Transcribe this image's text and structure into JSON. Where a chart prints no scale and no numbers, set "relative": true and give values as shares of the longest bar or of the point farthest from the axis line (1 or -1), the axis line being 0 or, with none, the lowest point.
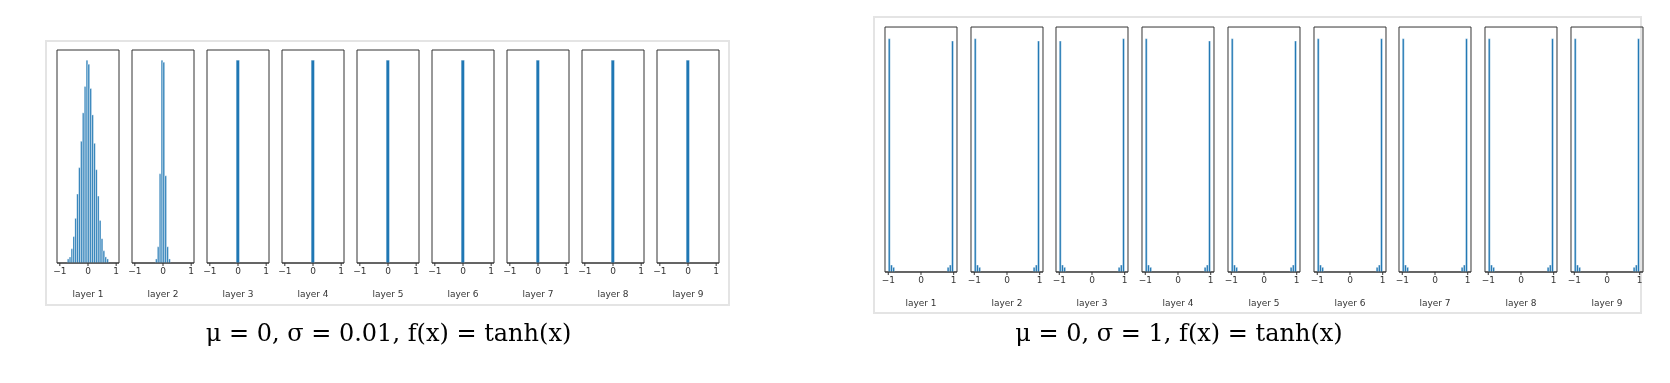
{
  "chart_data": [
    {
      "type": "bar",
      "xlabel": "layer 1",
      "x": [
        -0.967,
        -0.9,
        -0.833,
        -0.767,
        -0.7,
        -0.633,
        -0.567,
        -0.5,
        -0.433,
        -0.367,
        -0.3,
        -0.233,
        -0.167,
        -0.1,
        -0.033,
        0.033,
        0.1,
        0.167,
        0.233,
        0.3,
        0.367,
        0.433,
        0.5,
        0.567,
        0.633,
        0.7,
        0.767,
        0.833,
        0.9,
        0.967
      ],
      "values": [
        0,
        0,
        0,
        0,
        0.02,
        0.03,
        0.07,
        0.13,
        0.22,
        0.34,
        0.47,
        0.6,
        0.74,
        0.87,
        1,
        0.98,
        0.86,
        0.73,
        0.59,
        0.46,
        0.33,
        0.21,
        0.12,
        0.06,
        0.03,
        0.02,
        0,
        0,
        0,
        0
      ],
      "color": "#1f77b4",
      "relative": true,
      "xlim": [
        -1.1,
        1.1
      ],
      "xticks": [
        -1,
        0,
        1
      ]
    },
    {
      "type": "bar",
      "xlabel": "layer 2",
      "x": [
        -0.967,
        -0.9,
        -0.833,
        -0.767,
        -0.7,
        -0.633,
        -0.567,
        -0.5,
        -0.433,
        -0.367,
        -0.3,
        -0.233,
        -0.167,
        -0.1,
        -0.033,
        0.033,
        0.1,
        0.167,
        0.233,
        0.3,
        0.367,
        0.433,
        0.5,
        0.567,
        0.633,
        0.7,
        0.767,
        0.833,
        0.9,
        0.967
      ],
      "values": [
        0,
        0,
        0,
        0,
        0,
        0,
        0,
        0,
        0,
        0,
        0,
        0.02,
        0.08,
        0.44,
        1,
        0.99,
        0.43,
        0.08,
        0.02,
        0,
        0,
        0,
        0,
        0,
        0,
        0,
        0,
        0,
        0,
        0
      ],
      "color": "#1f77b4",
      "relative": true,
      "xlim": [
        -1.1,
        1.1
      ],
      "xticks": [
        -1,
        0,
        1
      ]
    },
    {
      "type": "bar",
      "xlabel": "layer 3",
      "x": [
        -0.933,
        -0.8,
        -0.667,
        -0.533,
        -0.4,
        -0.267,
        -0.133,
        0,
        0.133,
        0.267,
        0.4,
        0.533,
        0.667,
        0.8,
        0.933
      ],
      "values": [
        0,
        0,
        0,
        0,
        0,
        0,
        0,
        1,
        0,
        0,
        0,
        0,
        0,
        0,
        0
      ],
      "color": "#1f77b4",
      "relative": true,
      "xlim": [
        -1.1,
        1.1
      ],
      "xticks": [
        -1,
        0,
        1
      ]
    },
    {
      "type": "bar",
      "xlabel": "layer 4",
      "x": [
        -0.933,
        -0.8,
        -0.667,
        -0.533,
        -0.4,
        -0.267,
        -0.133,
        0,
        0.133,
        0.267,
        0.4,
        0.533,
        0.667,
        0.8,
        0.933
      ],
      "values": [
        0,
        0,
        0,
        0,
        0,
        0,
        0,
        1,
        0,
        0,
        0,
        0,
        0,
        0,
        0
      ],
      "color": "#1f77b4",
      "relative": true,
      "xlim": [
        -1.1,
        1.1
      ],
      "xticks": [
        -1,
        0,
        1
      ]
    },
    {
      "type": "bar",
      "xlabel": "layer 5",
      "x": [
        -0.933,
        -0.8,
        -0.667,
        -0.533,
        -0.4,
        -0.267,
        -0.133,
        0,
        0.133,
        0.267,
        0.4,
        0.533,
        0.667,
        0.8,
        0.933
      ],
      "values": [
        0,
        0,
        0,
        0,
        0,
        0,
        0,
        1,
        0,
        0,
        0,
        0,
        0,
        0,
        0
      ],
      "color": "#1f77b4",
      "relative": true,
      "xlim": [
        -1.1,
        1.1
      ],
      "xticks": [
        -1,
        0,
        1
      ],
      "annotations": [
        "μ = 0, σ = 0.01, f(x) = tanh(x)"
      ]
    },
    {
      "type": "bar",
      "xlabel": "layer 6",
      "x": [
        -0.933,
        -0.8,
        -0.667,
        -0.533,
        -0.4,
        -0.267,
        -0.133,
        0,
        0.133,
        0.267,
        0.4,
        0.533,
        0.667,
        0.8,
        0.933
      ],
      "values": [
        0,
        0,
        0,
        0,
        0,
        0,
        0,
        1,
        0,
        0,
        0,
        0,
        0,
        0,
        0
      ],
      "color": "#1f77b4",
      "relative": true,
      "xlim": [
        -1.1,
        1.1
      ],
      "xticks": [
        -1,
        0,
        1
      ]
    },
    {
      "type": "bar",
      "xlabel": "layer 7",
      "x": [
        -0.933,
        -0.8,
        -0.667,
        -0.533,
        -0.4,
        -0.267,
        -0.133,
        0,
        0.133,
        0.267,
        0.4,
        0.533,
        0.667,
        0.8,
        0.933
      ],
      "values": [
        0,
        0,
        0,
        0,
        0,
        0,
        0,
        1,
        0,
        0,
        0,
        0,
        0,
        0,
        0
      ],
      "color": "#1f77b4",
      "relative": true,
      "xlim": [
        -1.1,
        1.1
      ],
      "xticks": [
        -1,
        0,
        1
      ]
    },
    {
      "type": "bar",
      "xlabel": "layer 8",
      "x": [
        -0.933,
        -0.8,
        -0.667,
        -0.533,
        -0.4,
        -0.267,
        -0.133,
        0,
        0.133,
        0.267,
        0.4,
        0.533,
        0.667,
        0.8,
        0.933
      ],
      "values": [
        0,
        0,
        0,
        0,
        0,
        0,
        0,
        1,
        0,
        0,
        0,
        0,
        0,
        0,
        0
      ],
      "color": "#1f77b4",
      "relative": true,
      "xlim": [
        -1.1,
        1.1
      ],
      "xticks": [
        -1,
        0,
        1
      ]
    },
    {
      "type": "bar",
      "xlabel": "layer 9",
      "x": [
        -0.933,
        -0.8,
        -0.667,
        -0.533,
        -0.4,
        -0.267,
        -0.133,
        0,
        0.133,
        0.267,
        0.4,
        0.533,
        0.667,
        0.8,
        0.933
      ],
      "values": [
        0,
        0,
        0,
        0,
        0,
        0,
        0,
        1,
        0,
        0,
        0,
        0,
        0,
        0,
        0
      ],
      "color": "#1f77b4",
      "relative": true,
      "xlim": [
        -1.1,
        1.1
      ],
      "xticks": [
        -1,
        0,
        1
      ]
    },
    {
      "type": "bar",
      "xlabel": "layer 1",
      "x": [
        -0.967,
        -0.9,
        -0.833,
        -0.767,
        -0.7,
        -0.633,
        -0.567,
        -0.5,
        -0.433,
        -0.367,
        -0.3,
        -0.233,
        -0.167,
        -0.1,
        -0.033,
        0.033,
        0.1,
        0.167,
        0.233,
        0.3,
        0.367,
        0.433,
        0.5,
        0.567,
        0.633,
        0.7,
        0.767,
        0.833,
        0.9,
        0.967
      ],
      "values": [
        1,
        0.03,
        0.02,
        0,
        0,
        0,
        0,
        0,
        0,
        0,
        0,
        0,
        0,
        0,
        0,
        0,
        0,
        0,
        0,
        0,
        0,
        0,
        0,
        0,
        0,
        0,
        0,
        0.02,
        0.03,
        0.99
      ],
      "color": "#1f77b4",
      "relative": true,
      "xlim": [
        -1.1,
        1.1
      ],
      "xticks": [
        -1,
        0,
        1
      ]
    },
    {
      "type": "bar",
      "xlabel": "layer 2",
      "x": [
        -0.967,
        -0.9,
        -0.833,
        -0.767,
        -0.7,
        -0.633,
        -0.567,
        -0.5,
        -0.433,
        -0.367,
        -0.3,
        -0.233,
        -0.167,
        -0.1,
        -0.033,
        0.033,
        0.1,
        0.167,
        0.233,
        0.3,
        0.367,
        0.433,
        0.5,
        0.567,
        0.633,
        0.7,
        0.767,
        0.833,
        0.9,
        0.967
      ],
      "values": [
        1,
        0.03,
        0.02,
        0,
        0,
        0,
        0,
        0,
        0,
        0,
        0,
        0,
        0,
        0,
        0,
        0,
        0,
        0,
        0,
        0,
        0,
        0,
        0,
        0,
        0,
        0,
        0,
        0.02,
        0.03,
        0.99
      ],
      "color": "#1f77b4",
      "relative": true,
      "xlim": [
        -1.1,
        1.1
      ],
      "xticks": [
        -1,
        0,
        1
      ]
    },
    {
      "type": "bar",
      "xlabel": "layer 3",
      "x": [
        -0.967,
        -0.9,
        -0.833,
        -0.767,
        -0.7,
        -0.633,
        -0.567,
        -0.5,
        -0.433,
        -0.367,
        -0.3,
        -0.233,
        -0.167,
        -0.1,
        -0.033,
        0.033,
        0.1,
        0.167,
        0.233,
        0.3,
        0.367,
        0.433,
        0.5,
        0.567,
        0.633,
        0.7,
        0.767,
        0.833,
        0.9,
        0.967
      ],
      "values": [
        0.99,
        0.03,
        0.02,
        0,
        0,
        0,
        0,
        0,
        0,
        0,
        0,
        0,
        0,
        0,
        0,
        0,
        0,
        0,
        0,
        0,
        0,
        0,
        0,
        0,
        0,
        0,
        0,
        0.02,
        0.03,
        1
      ],
      "color": "#1f77b4",
      "relative": true,
      "xlim": [
        -1.1,
        1.1
      ],
      "xticks": [
        -1,
        0,
        1
      ]
    },
    {
      "type": "bar",
      "xlabel": "layer 4",
      "x": [
        -0.967,
        -0.9,
        -0.833,
        -0.767,
        -0.7,
        -0.633,
        -0.567,
        -0.5,
        -0.433,
        -0.367,
        -0.3,
        -0.233,
        -0.167,
        -0.1,
        -0.033,
        0.033,
        0.1,
        0.167,
        0.233,
        0.3,
        0.367,
        0.433,
        0.5,
        0.567,
        0.633,
        0.7,
        0.767,
        0.833,
        0.9,
        0.967
      ],
      "values": [
        1,
        0.03,
        0.02,
        0,
        0,
        0,
        0,
        0,
        0,
        0,
        0,
        0,
        0,
        0,
        0,
        0,
        0,
        0,
        0,
        0,
        0,
        0,
        0,
        0,
        0,
        0,
        0,
        0.02,
        0.03,
        0.99
      ],
      "color": "#1f77b4",
      "relative": true,
      "xlim": [
        -1.1,
        1.1
      ],
      "xticks": [
        -1,
        0,
        1
      ],
      "annotations": [
        "μ = 0, σ = 1, f(x) = tanh(x)"
      ]
    },
    {
      "type": "bar",
      "xlabel": "layer 5",
      "x": [
        -0.967,
        -0.9,
        -0.833,
        -0.767,
        -0.7,
        -0.633,
        -0.567,
        -0.5,
        -0.433,
        -0.367,
        -0.3,
        -0.233,
        -0.167,
        -0.1,
        -0.033,
        0.033,
        0.1,
        0.167,
        0.233,
        0.3,
        0.367,
        0.433,
        0.5,
        0.567,
        0.633,
        0.7,
        0.767,
        0.833,
        0.9,
        0.967
      ],
      "values": [
        1,
        0.03,
        0.02,
        0,
        0,
        0,
        0,
        0,
        0,
        0,
        0,
        0,
        0,
        0,
        0,
        0,
        0,
        0,
        0,
        0,
        0,
        0,
        0,
        0,
        0,
        0,
        0,
        0.02,
        0.03,
        0.99
      ],
      "color": "#1f77b4",
      "relative": true,
      "xlim": [
        -1.1,
        1.1
      ],
      "xticks": [
        -1,
        0,
        1
      ]
    },
    {
      "type": "bar",
      "xlabel": "layer 6",
      "x": [
        -0.967,
        -0.9,
        -0.833,
        -0.767,
        -0.7,
        -0.633,
        -0.567,
        -0.5,
        -0.433,
        -0.367,
        -0.3,
        -0.233,
        -0.167,
        -0.1,
        -0.033,
        0.033,
        0.1,
        0.167,
        0.233,
        0.3,
        0.367,
        0.433,
        0.5,
        0.567,
        0.633,
        0.7,
        0.767,
        0.833,
        0.9,
        0.967
      ],
      "values": [
        1,
        0.03,
        0.02,
        0,
        0,
        0,
        0,
        0,
        0,
        0,
        0,
        0,
        0,
        0,
        0,
        0,
        0,
        0,
        0,
        0,
        0,
        0,
        0,
        0,
        0,
        0,
        0,
        0.02,
        0.03,
        1
      ],
      "color": "#1f77b4",
      "relative": true,
      "xlim": [
        -1.1,
        1.1
      ],
      "xticks": [
        -1,
        0,
        1
      ]
    },
    {
      "type": "bar",
      "xlabel": "layer 7",
      "x": [
        -0.967,
        -0.9,
        -0.833,
        -0.767,
        -0.7,
        -0.633,
        -0.567,
        -0.5,
        -0.433,
        -0.367,
        -0.3,
        -0.233,
        -0.167,
        -0.1,
        -0.033,
        0.033,
        0.1,
        0.167,
        0.233,
        0.3,
        0.367,
        0.433,
        0.5,
        0.567,
        0.633,
        0.7,
        0.767,
        0.833,
        0.9,
        0.967
      ],
      "values": [
        1,
        0.03,
        0.02,
        0,
        0,
        0,
        0,
        0,
        0,
        0,
        0,
        0,
        0,
        0,
        0,
        0,
        0,
        0,
        0,
        0,
        0,
        0,
        0,
        0,
        0,
        0,
        0,
        0.02,
        0.03,
        1
      ],
      "color": "#1f77b4",
      "relative": true,
      "xlim": [
        -1.1,
        1.1
      ],
      "xticks": [
        -1,
        0,
        1
      ]
    },
    {
      "type": "bar",
      "xlabel": "layer 8",
      "x": [
        -0.967,
        -0.9,
        -0.833,
        -0.767,
        -0.7,
        -0.633,
        -0.567,
        -0.5,
        -0.433,
        -0.367,
        -0.3,
        -0.233,
        -0.167,
        -0.1,
        -0.033,
        0.033,
        0.1,
        0.167,
        0.233,
        0.3,
        0.367,
        0.433,
        0.5,
        0.567,
        0.633,
        0.7,
        0.767,
        0.833,
        0.9,
        0.967
      ],
      "values": [
        1,
        0.03,
        0.02,
        0,
        0,
        0,
        0,
        0,
        0,
        0,
        0,
        0,
        0,
        0,
        0,
        0,
        0,
        0,
        0,
        0,
        0,
        0,
        0,
        0,
        0,
        0,
        0,
        0.02,
        0.03,
        1
      ],
      "color": "#1f77b4",
      "relative": true,
      "xlim": [
        -1.1,
        1.1
      ],
      "xticks": [
        -1,
        0,
        1
      ]
    },
    {
      "type": "bar",
      "xlabel": "layer 9",
      "x": [
        -0.967,
        -0.9,
        -0.833,
        -0.767,
        -0.7,
        -0.633,
        -0.567,
        -0.5,
        -0.433,
        -0.367,
        -0.3,
        -0.233,
        -0.167,
        -0.1,
        -0.033,
        0.033,
        0.1,
        0.167,
        0.233,
        0.3,
        0.367,
        0.433,
        0.5,
        0.567,
        0.633,
        0.7,
        0.767,
        0.833,
        0.9,
        0.967
      ],
      "values": [
        1,
        0.03,
        0.02,
        0,
        0,
        0,
        0,
        0,
        0,
        0,
        0,
        0,
        0,
        0,
        0,
        0,
        0,
        0,
        0,
        0,
        0,
        0,
        0,
        0,
        0,
        0,
        0,
        0.02,
        0.03,
        1
      ],
      "color": "#1f77b4",
      "relative": true,
      "xlim": [
        -1.1,
        1.1
      ],
      "xticks": [
        -1,
        0,
        1
      ]
    }
  ]
}
